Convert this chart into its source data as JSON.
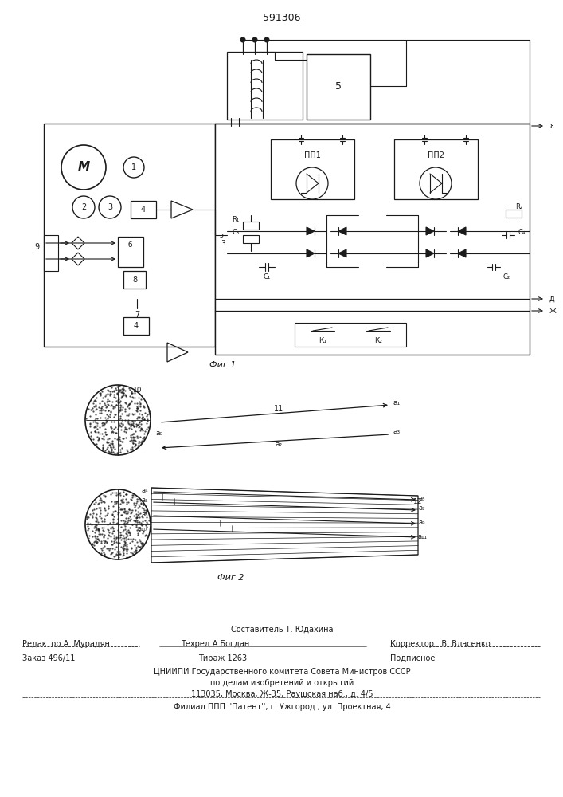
{
  "patent_number": "591306",
  "footer_line1": "Составитель Т. Юдахина",
  "footer_editor": "Редактор А. Мурадян",
  "footer_tech": "Техред А.Богдан",
  "footer_corrector": "Корректор   В. Власенко",
  "footer_order": "Заказ 496/11",
  "footer_tirazh": "Тираж 1263",
  "footer_podpisnoe": "Подписное",
  "footer_tsniipi": "ЦНИИПИ Государственного комитета Совета Министров СССР",
  "footer_po_delam": "по делам изобретений и открытий",
  "footer_address": "113035, Москва, Ж-35, Раушская наб., д. 4/5",
  "footer_filial": "Филиал ППП ''Патент'', г. Ужгород., ул. Проектная, 4"
}
